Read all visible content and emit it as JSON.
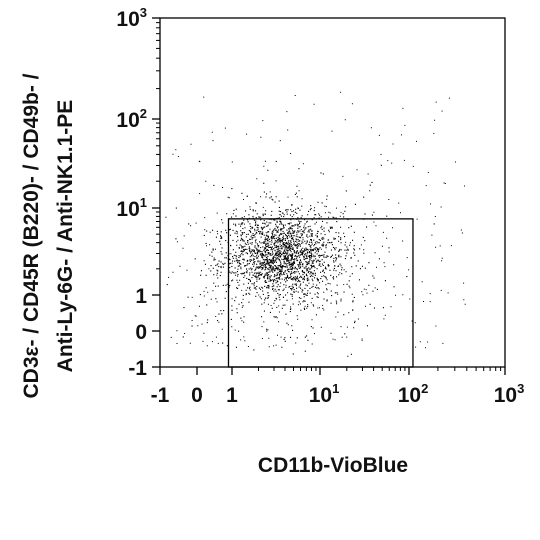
{
  "chart_data": {
    "type": "scatter",
    "title": "",
    "xlabel": "CD11b-VioBlue",
    "ylabel_lines": [
      "CD3ε- / CD45R (B220)- / CD49b- /",
      "Anti-Ly-6G- / Anti-NK1.1-PE"
    ],
    "x_scale": "biexponential",
    "y_scale": "biexponential",
    "xlim": [
      -1,
      1000
    ],
    "ylim": [
      -1,
      1000
    ],
    "x_ticks": [
      {
        "value": -1,
        "label": "-1"
      },
      {
        "value": 0,
        "label": "0"
      },
      {
        "value": 1,
        "label": "1"
      },
      {
        "value": 10,
        "base": "10",
        "exp": "1"
      },
      {
        "value": 100,
        "base": "10",
        "exp": "2"
      },
      {
        "value": 1000,
        "base": "10",
        "exp": "3"
      }
    ],
    "y_ticks": [
      {
        "value": -1,
        "label": "-1"
      },
      {
        "value": 0,
        "label": "0"
      },
      {
        "value": 1,
        "label": "1"
      },
      {
        "value": 10,
        "base": "10",
        "exp": "1"
      },
      {
        "value": 100,
        "base": "10",
        "exp": "2"
      },
      {
        "value": 1000,
        "base": "10",
        "exp": "3"
      }
    ],
    "population": {
      "center": [
        4,
        3
      ],
      "spread": "dense cloud spanning x ≈ 0.5–20, y ≈ 0.5–8",
      "color": "#000000"
    },
    "gate": {
      "shape": "rectangle",
      "x_range": [
        0.9,
        110
      ],
      "y_range": [
        -1,
        7.5
      ],
      "color": "#000000"
    },
    "grid": false,
    "legend": "none"
  }
}
